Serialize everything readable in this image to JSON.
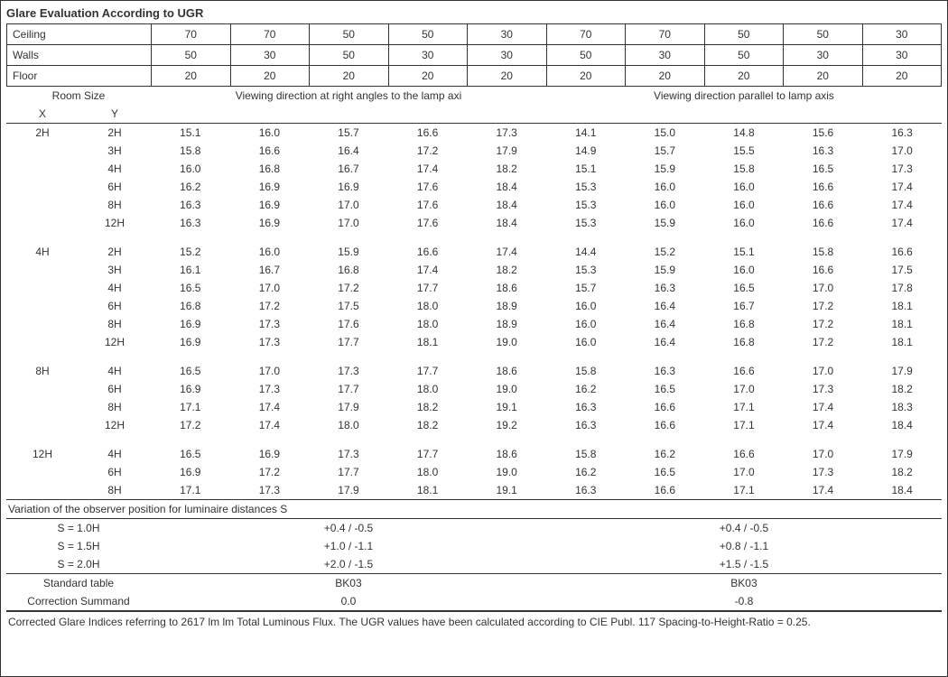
{
  "title": "Glare Evaluation According to UGR",
  "header_rows": [
    {
      "label": "Ceiling",
      "vals": [
        "70",
        "70",
        "50",
        "50",
        "30",
        "70",
        "70",
        "50",
        "50",
        "30"
      ]
    },
    {
      "label": "Walls",
      "vals": [
        "50",
        "30",
        "50",
        "30",
        "30",
        "50",
        "30",
        "50",
        "30",
        "30"
      ]
    },
    {
      "label": "Floor",
      "vals": [
        "20",
        "20",
        "20",
        "20",
        "20",
        "20",
        "20",
        "20",
        "20",
        "20"
      ]
    }
  ],
  "room_size_label": "Room Size",
  "x_label": "X",
  "y_label": "Y",
  "group_left_label": "Viewing direction at right angles to the lamp axi",
  "group_right_label": "Viewing direction parallel to lamp axis",
  "blocks": [
    {
      "x": "2H",
      "rows": [
        {
          "y": "2H",
          "l": [
            "15.1",
            "16.0",
            "15.7",
            "16.6",
            "17.3"
          ],
          "r": [
            "14.1",
            "15.0",
            "14.8",
            "15.6",
            "16.3"
          ]
        },
        {
          "y": "3H",
          "l": [
            "15.8",
            "16.6",
            "16.4",
            "17.2",
            "17.9"
          ],
          "r": [
            "14.9",
            "15.7",
            "15.5",
            "16.3",
            "17.0"
          ]
        },
        {
          "y": "4H",
          "l": [
            "16.0",
            "16.8",
            "16.7",
            "17.4",
            "18.2"
          ],
          "r": [
            "15.1",
            "15.9",
            "15.8",
            "16.5",
            "17.3"
          ]
        },
        {
          "y": "6H",
          "l": [
            "16.2",
            "16.9",
            "16.9",
            "17.6",
            "18.4"
          ],
          "r": [
            "15.3",
            "16.0",
            "16.0",
            "16.6",
            "17.4"
          ]
        },
        {
          "y": "8H",
          "l": [
            "16.3",
            "16.9",
            "17.0",
            "17.6",
            "18.4"
          ],
          "r": [
            "15.3",
            "16.0",
            "16.0",
            "16.6",
            "17.4"
          ]
        },
        {
          "y": "12H",
          "l": [
            "16.3",
            "16.9",
            "17.0",
            "17.6",
            "18.4"
          ],
          "r": [
            "15.3",
            "15.9",
            "16.0",
            "16.6",
            "17.4"
          ]
        }
      ]
    },
    {
      "x": "4H",
      "rows": [
        {
          "y": "2H",
          "l": [
            "15.2",
            "16.0",
            "15.9",
            "16.6",
            "17.4"
          ],
          "r": [
            "14.4",
            "15.2",
            "15.1",
            "15.8",
            "16.6"
          ]
        },
        {
          "y": "3H",
          "l": [
            "16.1",
            "16.7",
            "16.8",
            "17.4",
            "18.2"
          ],
          "r": [
            "15.3",
            "15.9",
            "16.0",
            "16.6",
            "17.5"
          ]
        },
        {
          "y": "4H",
          "l": [
            "16.5",
            "17.0",
            "17.2",
            "17.7",
            "18.6"
          ],
          "r": [
            "15.7",
            "16.3",
            "16.5",
            "17.0",
            "17.8"
          ]
        },
        {
          "y": "6H",
          "l": [
            "16.8",
            "17.2",
            "17.5",
            "18.0",
            "18.9"
          ],
          "r": [
            "16.0",
            "16.4",
            "16.7",
            "17.2",
            "18.1"
          ]
        },
        {
          "y": "8H",
          "l": [
            "16.9",
            "17.3",
            "17.6",
            "18.0",
            "18.9"
          ],
          "r": [
            "16.0",
            "16.4",
            "16.8",
            "17.2",
            "18.1"
          ]
        },
        {
          "y": "12H",
          "l": [
            "16.9",
            "17.3",
            "17.7",
            "18.1",
            "19.0"
          ],
          "r": [
            "16.0",
            "16.4",
            "16.8",
            "17.2",
            "18.1"
          ]
        }
      ]
    },
    {
      "x": "8H",
      "rows": [
        {
          "y": "4H",
          "l": [
            "16.5",
            "17.0",
            "17.3",
            "17.7",
            "18.6"
          ],
          "r": [
            "15.8",
            "16.3",
            "16.6",
            "17.0",
            "17.9"
          ]
        },
        {
          "y": "6H",
          "l": [
            "16.9",
            "17.3",
            "17.7",
            "18.0",
            "19.0"
          ],
          "r": [
            "16.2",
            "16.5",
            "17.0",
            "17.3",
            "18.2"
          ]
        },
        {
          "y": "8H",
          "l": [
            "17.1",
            "17.4",
            "17.9",
            "18.2",
            "19.1"
          ],
          "r": [
            "16.3",
            "16.6",
            "17.1",
            "17.4",
            "18.3"
          ]
        },
        {
          "y": "12H",
          "l": [
            "17.2",
            "17.4",
            "18.0",
            "18.2",
            "19.2"
          ],
          "r": [
            "16.3",
            "16.6",
            "17.1",
            "17.4",
            "18.4"
          ]
        }
      ]
    },
    {
      "x": "12H",
      "rows": [
        {
          "y": "4H",
          "l": [
            "16.5",
            "16.9",
            "17.3",
            "17.7",
            "18.6"
          ],
          "r": [
            "15.8",
            "16.2",
            "16.6",
            "17.0",
            "17.9"
          ]
        },
        {
          "y": "6H",
          "l": [
            "16.9",
            "17.2",
            "17.7",
            "18.0",
            "19.0"
          ],
          "r": [
            "16.2",
            "16.5",
            "17.0",
            "17.3",
            "18.2"
          ]
        },
        {
          "y": "8H",
          "l": [
            "17.1",
            "17.3",
            "17.9",
            "18.1",
            "19.1"
          ],
          "r": [
            "16.3",
            "16.6",
            "17.1",
            "17.4",
            "18.4"
          ]
        }
      ]
    }
  ],
  "variation_title": "Variation of the observer position for luminaire distances S",
  "variation_rows": [
    {
      "s": "S = 1.0H",
      "left": "+0.4 / -0.5",
      "right": "+0.4 / -0.5"
    },
    {
      "s": "S = 1.5H",
      "left": "+1.0 / -1.1",
      "right": "+0.8 / -1.1"
    },
    {
      "s": "S = 2.0H",
      "left": "+2.0 / -1.5",
      "right": "+1.5 / -1.5"
    }
  ],
  "standard_table_label": "Standard table",
  "standard_table_left": "BK03",
  "standard_table_right": "BK03",
  "correction_label": "Correction Summand",
  "correction_left": "0.0",
  "correction_right": "-0.8",
  "footnote": "Corrected Glare Indices referring to 2617 lm lm Total Luminous Flux. The UGR values have been calculated according to CIE Publ. 117    Spacing-to-Height-Ratio = 0.25."
}
